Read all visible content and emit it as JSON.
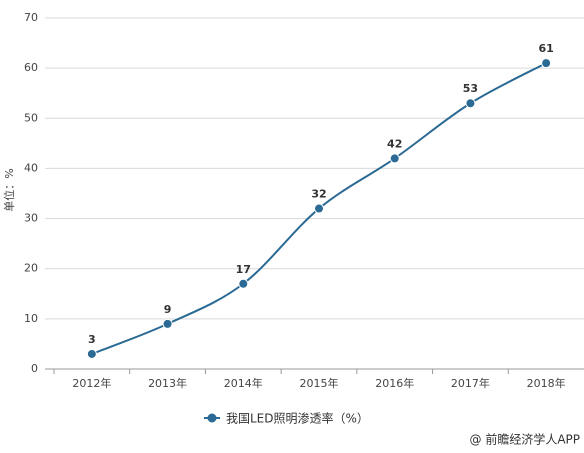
{
  "chart_data": {
    "type": "line",
    "y_label": "单位：%",
    "categories": [
      "2012年",
      "2013年",
      "2014年",
      "2015年",
      "2016年",
      "2017年",
      "2018年"
    ],
    "series": [
      {
        "name": "我国LED照明渗透率（%）",
        "color": "#2b6a94",
        "values": [
          3,
          9,
          17,
          32,
          42,
          53,
          61
        ]
      }
    ],
    "ylim": [
      0,
      70
    ],
    "yticks": [
      0,
      10,
      20,
      30,
      40,
      50,
      60,
      70
    ],
    "grid": true,
    "legend": "bottom",
    "source": "@ 前瞻经济学人APP"
  }
}
